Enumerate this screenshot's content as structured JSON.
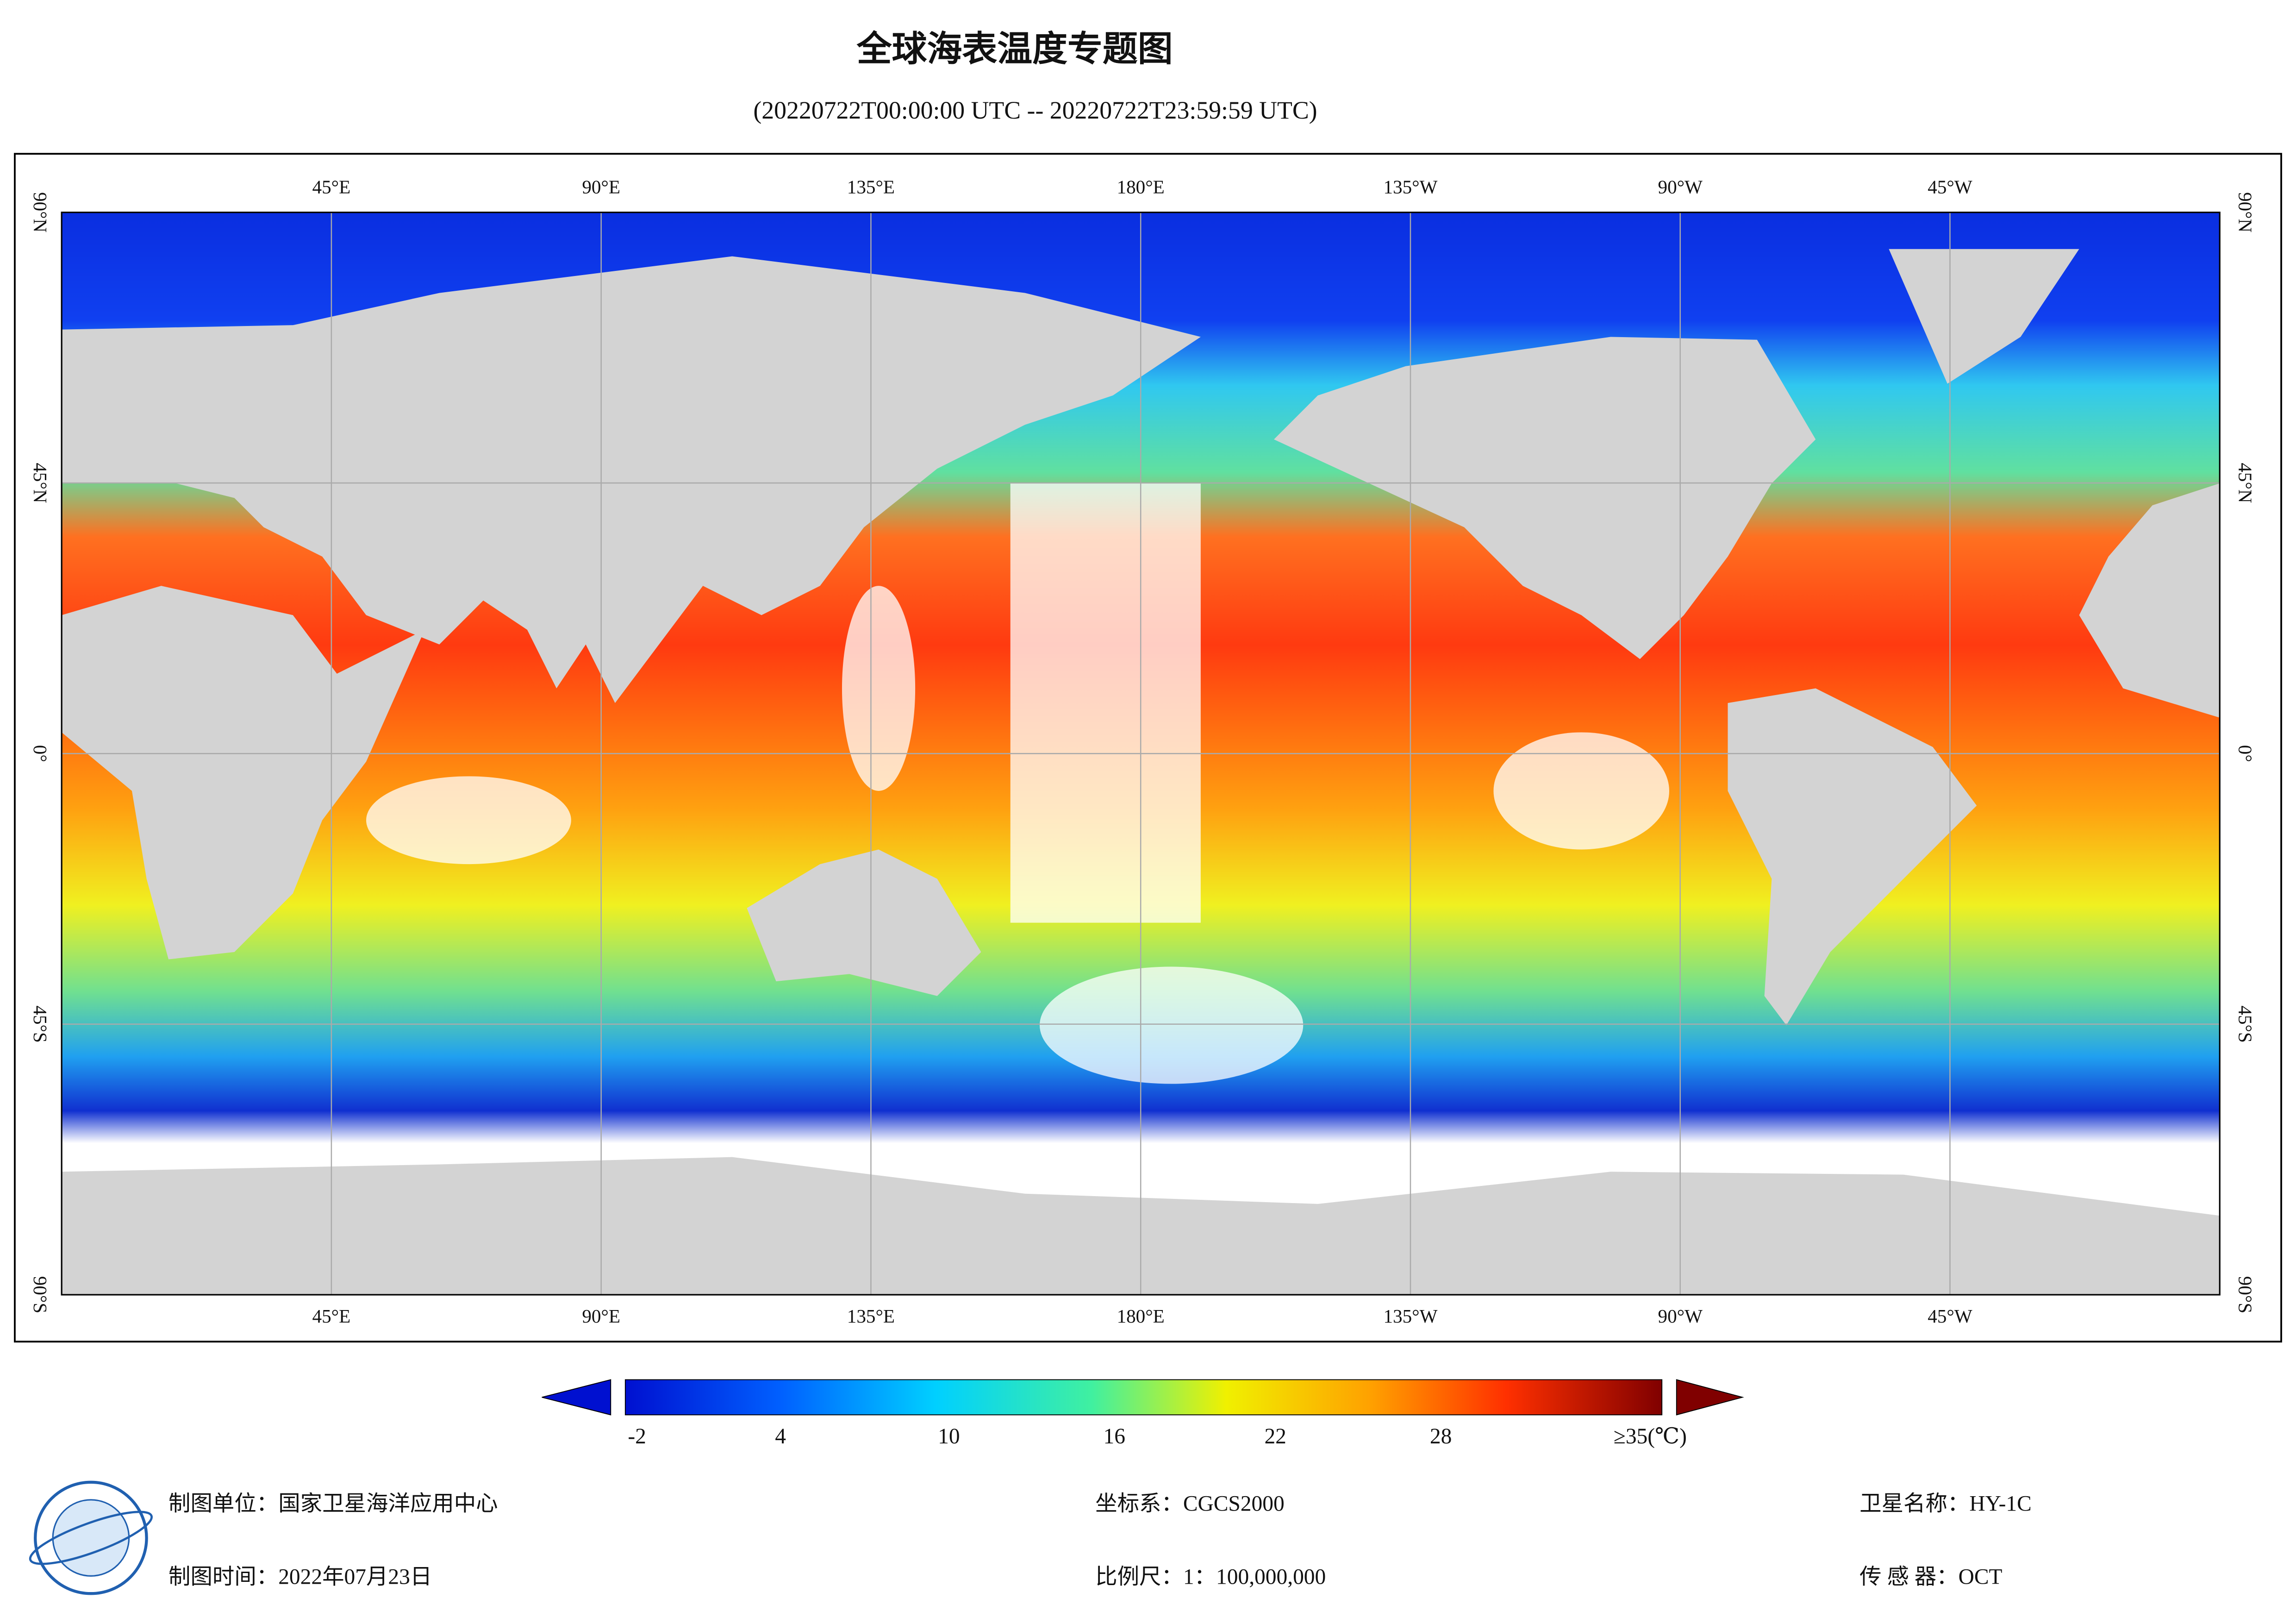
{
  "title": "全球海表温度专题图",
  "subtitle": "(20220722T00:00:00 UTC -- 20220722T23:59:59 UTC)",
  "map": {
    "lon_labels": [
      "45°E",
      "90°E",
      "135°E",
      "180°E",
      "135°W",
      "90°W",
      "45°W"
    ],
    "lat_labels": [
      "90°N",
      "45°N",
      "0°",
      "45°S",
      "90°S"
    ]
  },
  "colorbar": {
    "tick_labels": [
      "-2",
      "4",
      "10",
      "16",
      "22",
      "28",
      "≥35(℃)"
    ]
  },
  "footer": {
    "unit": "制图单位：国家卫星海洋应用中心",
    "date": "制图时间：2022年07月23日",
    "crs": "坐标系：CGCS2000",
    "scale": "比例尺：1：100,000,000",
    "satellite": "卫星名称：HY-1C",
    "sensor": "传 感 器：OCT"
  }
}
